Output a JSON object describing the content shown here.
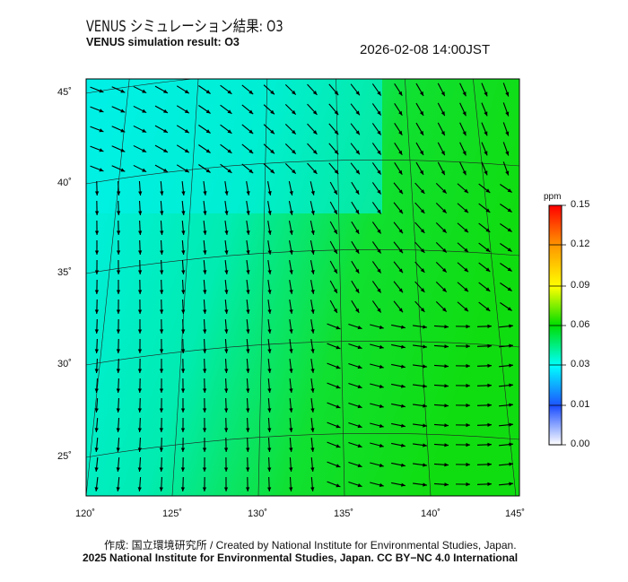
{
  "header": {
    "title_jp": "VENUS シミュレーション結果: O3",
    "title_en": "VENUS simulation result: O3",
    "timestamp": "2026-02-08 14:00JST"
  },
  "map": {
    "lat_labels": [
      "45˚",
      "40˚",
      "35˚",
      "30˚",
      "25˚"
    ],
    "lon_labels": [
      "120˚",
      "125˚",
      "130˚",
      "135˚",
      "140˚",
      "145˚"
    ],
    "field_colors": {
      "low": "#00f0e8",
      "mid": "#00e890",
      "high": "#10e010"
    }
  },
  "colorbar": {
    "unit": "ppm",
    "ticks": [
      "0.15",
      "0.12",
      "0.09",
      "0.06",
      "0.03",
      "0.01",
      "0.00"
    ],
    "colors": [
      "#ff0000",
      "#ff9900",
      "#ffff00",
      "#00dd00",
      "#00ffff",
      "#1e50ff",
      "#ffffff"
    ]
  },
  "footer": {
    "credit": "作成: 国立環境研究所 / Created by National Institute for Environmental Studies, Japan.",
    "license": "2025 National Institute for Environmental Studies, Japan. CC BY−NC 4.0 International"
  }
}
